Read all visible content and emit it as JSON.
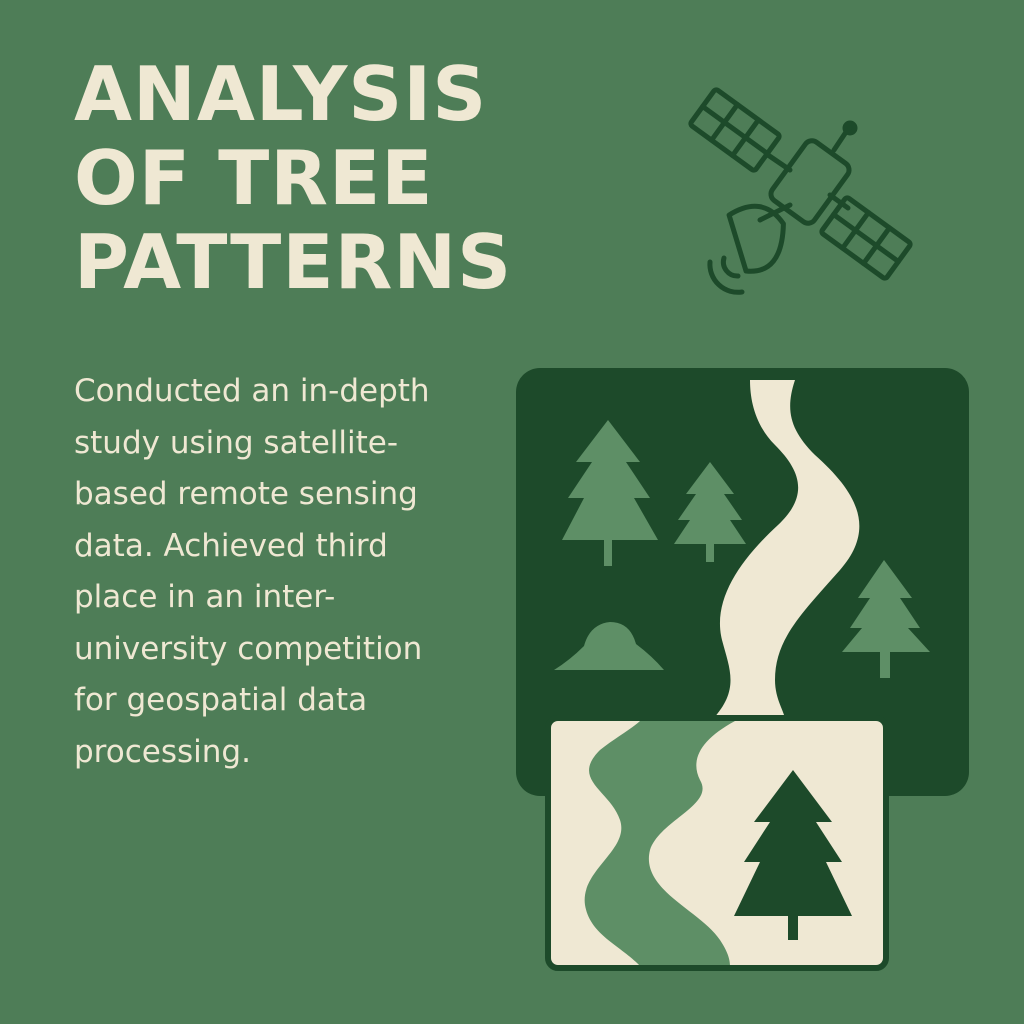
{
  "title_lines": [
    "ANALYSIS",
    "OF TREE",
    "PATTERNS"
  ],
  "description_lines": [
    "Conducted an in-depth",
    "study using satellite-",
    "based remote sensing",
    "data. Achieved third",
    "place in an inter-",
    "university competition",
    "for geospatial data",
    "processing."
  ],
  "colors": {
    "background": "#4e7d57",
    "cream": "#efe8d3",
    "dark_green": "#1d4a2a",
    "mid_green": "#5e8f66"
  },
  "icons": [
    "satellite-icon",
    "forest-river-map-illustration",
    "tree-icon",
    "bush-icon",
    "river-icon"
  ]
}
